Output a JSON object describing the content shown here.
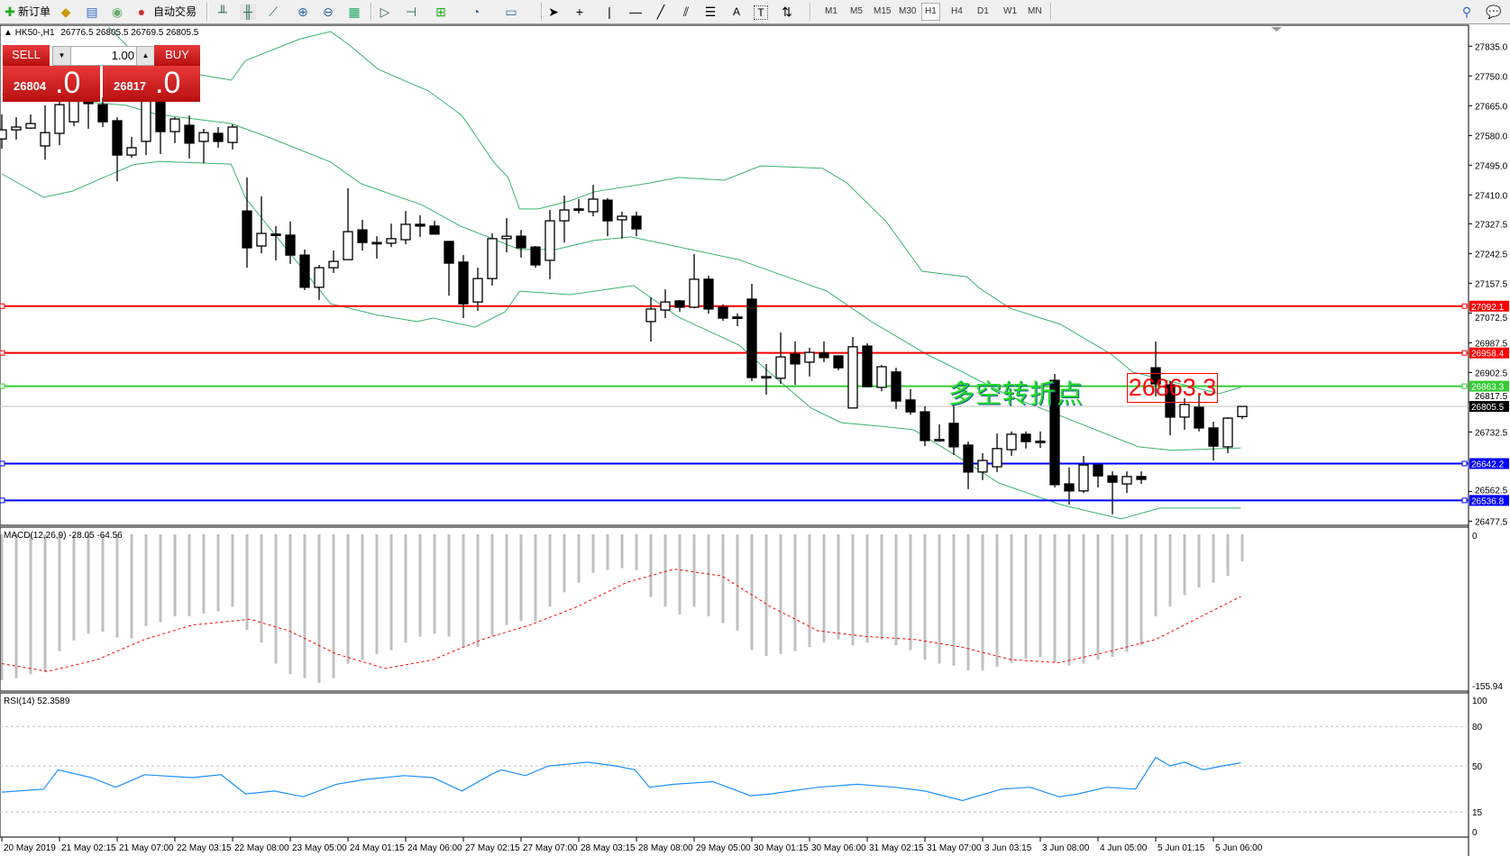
{
  "toolbar": {
    "new_order": "新订单",
    "auto_trading": "自动交易",
    "timeframes": [
      "M1",
      "M5",
      "M15",
      "M30",
      "H1",
      "H4",
      "D1",
      "W1",
      "MN"
    ],
    "active_timeframe": "H1",
    "text_tool": "A",
    "text_label_tool": "T"
  },
  "header": {
    "symbol": "HK50-,H1",
    "ohlc": "26776.5 26805.5 26769.5 26805.5"
  },
  "trade_panel": {
    "sell_label": "SELL",
    "buy_label": "BUY",
    "lot": "1.00",
    "sell_price_main": "26804",
    "sell_price_digit": ".0",
    "buy_price_main": "26817",
    "buy_price_digit": ".0"
  },
  "annotation": {
    "text": "多空转折点",
    "price_label": "26863.3",
    "text_color": "#22dd22"
  },
  "chart": {
    "type": "candlestick",
    "price_ticks": [
      "27835.0",
      "27750.0",
      "27665.0",
      "27580.0",
      "27495.0",
      "27410.0",
      "27327.5",
      "27242.5",
      "27157.5",
      "27072.5",
      "26987.5",
      "26902.5",
      "26817.5",
      "26732.5",
      "26562.5",
      "26477.5"
    ],
    "levels": [
      {
        "price": 27092.1,
        "label": "27092.1",
        "color": "#ff0000"
      },
      {
        "price": 26958.4,
        "label": "26958.4",
        "color": "#ff0000"
      },
      {
        "price": 26863.3,
        "label": "26863.3",
        "color": "#33cc33"
      },
      {
        "price": 26642.2,
        "label": "26642.2",
        "color": "#0000ff"
      },
      {
        "price": 26536.8,
        "label": "26536.8",
        "color": "#0000ff"
      }
    ],
    "bid_line": {
      "price": 26805.5,
      "label": "26805.5",
      "color": "#000000"
    },
    "band_color": "#3cb371",
    "candles_ohlc": [
      [
        27570,
        27640,
        27542,
        27596
      ],
      [
        27596,
        27632,
        27568,
        27604
      ],
      [
        27601,
        27640,
        27599,
        27614
      ],
      [
        27550,
        27666,
        27511,
        27588
      ],
      [
        27586,
        27697,
        27552,
        27668
      ],
      [
        27619,
        27710,
        27607,
        27679
      ],
      [
        27679,
        27710,
        27599,
        27671
      ],
      [
        27668,
        27689,
        27604,
        27619
      ],
      [
        27622,
        27632,
        27449,
        27524
      ],
      [
        27524,
        27576,
        27516,
        27545
      ],
      [
        27563,
        27710,
        27524,
        27697
      ],
      [
        27697,
        27710,
        27527,
        27591
      ],
      [
        27591,
        27632,
        27558,
        27627
      ],
      [
        27609,
        27637,
        27514,
        27558
      ],
      [
        27563,
        27599,
        27501,
        27588
      ],
      [
        27586,
        27604,
        27545,
        27563
      ],
      [
        27560,
        27612,
        27540,
        27604
      ],
      [
        27364,
        27460,
        27202,
        27259
      ],
      [
        27264,
        27406,
        27243,
        27300
      ],
      [
        27298,
        27321,
        27223,
        27295
      ],
      [
        27295,
        27334,
        27213,
        27238
      ],
      [
        27238,
        27254,
        27138,
        27146
      ],
      [
        27146,
        27210,
        27110,
        27202
      ],
      [
        27202,
        27251,
        27187,
        27220
      ],
      [
        27225,
        27429,
        27225,
        27305
      ],
      [
        27310,
        27339,
        27251,
        27274
      ],
      [
        27274,
        27292,
        27228,
        27271
      ],
      [
        27272,
        27328,
        27261,
        27285
      ],
      [
        27282,
        27364,
        27269,
        27326
      ],
      [
        27326,
        27352,
        27290,
        27321
      ],
      [
        27321,
        27336,
        27298,
        27298
      ],
      [
        27277,
        27277,
        27122,
        27215
      ],
      [
        27218,
        27238,
        27058,
        27099
      ],
      [
        27104,
        27202,
        27079,
        27171
      ],
      [
        27171,
        27300,
        27151,
        27285
      ],
      [
        27285,
        27344,
        27246,
        27292
      ],
      [
        27292,
        27310,
        27231,
        27259
      ],
      [
        27261,
        27264,
        27202,
        27210
      ],
      [
        27223,
        27367,
        27169,
        27336
      ],
      [
        27336,
        27408,
        27274,
        27367
      ],
      [
        27370,
        27398,
        27357,
        27367
      ],
      [
        27362,
        27439,
        27349,
        27398
      ],
      [
        27395,
        27401,
        27292,
        27336
      ],
      [
        27339,
        27362,
        27285,
        27349
      ],
      [
        27349,
        27362,
        27292,
        27313
      ],
      [
        27048,
        27117,
        26991,
        27084
      ],
      [
        27081,
        27140,
        27058,
        27104
      ],
      [
        27107,
        27110,
        27076,
        27089
      ],
      [
        27089,
        27241,
        27086,
        27169
      ],
      [
        27169,
        27179,
        27071,
        27084
      ],
      [
        27089,
        27097,
        27050,
        27058
      ],
      [
        27061,
        27071,
        27035,
        27060
      ],
      [
        27112,
        27156,
        26878,
        26888
      ],
      [
        26888,
        26927,
        26839,
        26891
      ],
      [
        26886,
        27017,
        26870,
        26947
      ],
      [
        26955,
        26991,
        26867,
        26927
      ],
      [
        26932,
        26973,
        26891,
        26960
      ],
      [
        26958,
        26991,
        26932,
        26945
      ],
      [
        26950,
        26950,
        26909,
        26916
      ],
      [
        26801,
        27004,
        26801,
        26976
      ],
      [
        26978,
        26986,
        26862,
        26862
      ],
      [
        26860,
        26924,
        26849,
        26919
      ],
      [
        26904,
        26916,
        26798,
        26821
      ],
      [
        26824,
        26855,
        26782,
        26790
      ],
      [
        26790,
        26806,
        26692,
        26708
      ],
      [
        26710,
        26754,
        26705,
        26711
      ],
      [
        26757,
        26816,
        26667,
        26690
      ],
      [
        26695,
        26705,
        26569,
        26618
      ],
      [
        26618,
        26672,
        26595,
        26651
      ],
      [
        26633,
        26728,
        26618,
        26685
      ],
      [
        26682,
        26734,
        26664,
        26726
      ],
      [
        26726,
        26734,
        26685,
        26705
      ],
      [
        26705,
        26734,
        26687,
        26706
      ],
      [
        26880,
        26898,
        26574,
        26582
      ],
      [
        26584,
        26631,
        26525,
        26564
      ],
      [
        26564,
        26664,
        26558,
        26638
      ],
      [
        26638,
        26641,
        26574,
        26607
      ],
      [
        26607,
        26620,
        26497,
        26589
      ],
      [
        26584,
        26620,
        26558,
        26605
      ],
      [
        26605,
        26620,
        26584,
        26597
      ],
      [
        26916,
        26991,
        26834,
        26870
      ],
      [
        26867,
        26878,
        26723,
        26775
      ],
      [
        26775,
        26829,
        26739,
        26811
      ],
      [
        26803,
        26842,
        26734,
        26744
      ],
      [
        26744,
        26762,
        26651,
        26692
      ],
      [
        26690,
        26775,
        26672,
        26772
      ],
      [
        26776.5,
        26805.5,
        26769.5,
        26805.5
      ]
    ],
    "bands": {
      "upper": [
        [
          7.4,
          27890
        ],
        [
          9.25,
          27812
        ],
        [
          13.8,
          27753
        ],
        [
          15.9,
          27738
        ],
        [
          16.9,
          27794
        ],
        [
          20.7,
          27856
        ],
        [
          22.8,
          27877
        ],
        [
          24.1,
          27838
        ],
        [
          26.1,
          27769
        ],
        [
          29.6,
          27707
        ],
        [
          31.9,
          27637
        ],
        [
          34.1,
          27504
        ],
        [
          35.1,
          27460
        ],
        [
          35.9,
          27370
        ],
        [
          37.2,
          27370
        ],
        [
          39.4,
          27393
        ],
        [
          41.1,
          27419
        ],
        [
          44.9,
          27444
        ],
        [
          46.9,
          27460
        ],
        [
          50.1,
          27452
        ],
        [
          52.6,
          27493
        ],
        [
          56.9,
          27486
        ],
        [
          58.6,
          27444
        ],
        [
          61.3,
          27334
        ],
        [
          62.4,
          27272
        ],
        [
          63.8,
          27192
        ],
        [
          66.9,
          27176
        ],
        [
          67.8,
          27143
        ],
        [
          69.9,
          27086
        ],
        [
          73.4,
          27040
        ],
        [
          76.9,
          26955
        ],
        [
          78.4,
          26904
        ],
        [
          84.4,
          26842
        ],
        [
          85.9,
          26860
        ]
      ],
      "middle": [
        [
          0,
          27697
        ],
        [
          8.6,
          27666
        ],
        [
          10.8,
          27640
        ],
        [
          15.9,
          27614
        ],
        [
          18.6,
          27573
        ],
        [
          22.8,
          27504
        ],
        [
          24.9,
          27442
        ],
        [
          29.1,
          27382
        ],
        [
          31.8,
          27321
        ],
        [
          35.9,
          27254
        ],
        [
          38.4,
          27254
        ],
        [
          41.1,
          27280
        ],
        [
          43.6,
          27290
        ],
        [
          45.7,
          27272
        ],
        [
          51.1,
          27225
        ],
        [
          51.9,
          27213
        ],
        [
          57.2,
          27135
        ],
        [
          60.3,
          27048
        ],
        [
          64.1,
          26955
        ],
        [
          66.6,
          26904
        ],
        [
          69.9,
          26834
        ],
        [
          73.2,
          26782
        ],
        [
          78.8,
          26690
        ],
        [
          81.1,
          26680
        ],
        [
          85.9,
          26687
        ]
      ],
      "lower": [
        [
          0,
          27470
        ],
        [
          2.9,
          27403
        ],
        [
          4.9,
          27421
        ],
        [
          6.9,
          27457
        ],
        [
          9.1,
          27496
        ],
        [
          10.9,
          27506
        ],
        [
          15.9,
          27498
        ],
        [
          16.9,
          27401
        ],
        [
          22.8,
          27099
        ],
        [
          26.1,
          27066
        ],
        [
          28.8,
          27048
        ],
        [
          29.9,
          27058
        ],
        [
          32.8,
          27032
        ],
        [
          34.9,
          27076
        ],
        [
          35.9,
          27135
        ],
        [
          39.4,
          27125
        ],
        [
          43.8,
          27151
        ],
        [
          46.9,
          27061
        ],
        [
          51.1,
          26981
        ],
        [
          53,
          26911
        ],
        [
          56.1,
          26801
        ],
        [
          58.2,
          26759
        ],
        [
          60.9,
          26749
        ],
        [
          63.2,
          26739
        ],
        [
          66.6,
          26654
        ],
        [
          69.1,
          26587
        ],
        [
          73.4,
          26525
        ],
        [
          77.6,
          26484
        ],
        [
          80.3,
          26515
        ],
        [
          85.9,
          26515
        ]
      ]
    },
    "time_labels": [
      "20 May 2019",
      "21 May 02:15",
      "21 May 07:00",
      "22 May 03:15",
      "22 May 08:00",
      "23 May 05:00",
      "24 May 01:15",
      "24 May 06:00",
      "27 May 02:15",
      "27 May 07:00",
      "28 May 03:15",
      "28 May 08:00",
      "29 May 05:00",
      "30 May 01:15",
      "30 May 06:00",
      "31 May 02:15",
      "31 May 07:00",
      "3 Jun 03:15",
      "3 Jun 08:00",
      "4 Jun 05:00",
      "5 Jun 01:15",
      "5 Jun 06:00"
    ]
  },
  "macd": {
    "label": "MACD(12,26,9) -28.05 -64.56",
    "scale_top": "0",
    "scale_bottom": "-155.94",
    "range": [
      -155.94,
      0
    ],
    "histogram": [
      -151,
      -149,
      -145,
      -143,
      -121,
      -110,
      -103,
      -101,
      -107,
      -108,
      -95,
      -91,
      -85,
      -85,
      -82,
      -80,
      -75,
      -99,
      -112,
      -134,
      -145,
      -149,
      -154,
      -149,
      -134,
      -130,
      -124,
      -120,
      -112,
      -106,
      -103,
      -106,
      -117,
      -117,
      -105,
      -94,
      -90,
      -90,
      -75,
      -60,
      -50,
      -40,
      -37,
      -35,
      -37,
      -65,
      -75,
      -83,
      -75,
      -85,
      -92,
      -100,
      -120,
      -126,
      -124,
      -121,
      -117,
      -112,
      -109,
      -115,
      -112,
      -109,
      -115,
      -120,
      -130,
      -134,
      -136,
      -141,
      -141,
      -137,
      -133,
      -129,
      -127,
      -133,
      -136,
      -134,
      -130,
      -127,
      -122,
      -115,
      -85,
      -75,
      -63,
      -55,
      -50,
      -43,
      -28.05
    ],
    "signal": [
      [
        0,
        -134
      ],
      [
        3.2,
        -142
      ],
      [
        6.6,
        -130
      ],
      [
        9.9,
        -109
      ],
      [
        13.2,
        -94
      ],
      [
        17.2,
        -88
      ],
      [
        19.9,
        -100
      ],
      [
        23.2,
        -124
      ],
      [
        26.6,
        -139
      ],
      [
        29.9,
        -130
      ],
      [
        33.3,
        -109
      ],
      [
        36.6,
        -94
      ],
      [
        39.9,
        -75
      ],
      [
        43.3,
        -50
      ],
      [
        46.6,
        -36
      ],
      [
        49.9,
        -43
      ],
      [
        53.3,
        -75
      ],
      [
        56.6,
        -100
      ],
      [
        60,
        -106
      ],
      [
        63.3,
        -109
      ],
      [
        66.6,
        -117
      ],
      [
        70,
        -130
      ],
      [
        73.3,
        -133
      ],
      [
        76.6,
        -122
      ],
      [
        80,
        -109
      ],
      [
        83.3,
        -84
      ],
      [
        85.9,
        -64.56
      ]
    ],
    "hist_color": "#c0c0c0",
    "signal_color": "#ff0000"
  },
  "rsi": {
    "label": "RSI(14) 52.3589",
    "levels": [
      "100",
      "80",
      "50",
      "15",
      "0"
    ],
    "line_color": "#1e90ff",
    "values": [
      [
        0,
        30.1
      ],
      [
        2.9,
        32.3
      ],
      [
        3.9,
        47
      ],
      [
        6.2,
        41.1
      ],
      [
        7.9,
        33.8
      ],
      [
        9.9,
        43.3
      ],
      [
        13.2,
        41.1
      ],
      [
        15.2,
        43.3
      ],
      [
        16.9,
        28.7
      ],
      [
        18.9,
        30.9
      ],
      [
        20.9,
        26.5
      ],
      [
        23.2,
        36
      ],
      [
        25.2,
        39.7
      ],
      [
        27.9,
        42.6
      ],
      [
        29.9,
        41.1
      ],
      [
        31.9,
        30.9
      ],
      [
        33.9,
        43.3
      ],
      [
        34.6,
        47
      ],
      [
        36.3,
        42.6
      ],
      [
        37.9,
        49.9
      ],
      [
        40.6,
        52.8
      ],
      [
        42.6,
        49.9
      ],
      [
        43.9,
        47
      ],
      [
        44.9,
        33.8
      ],
      [
        46.6,
        36
      ],
      [
        49.3,
        38
      ],
      [
        51.9,
        27.3
      ],
      [
        53.3,
        28.7
      ],
      [
        56.6,
        33.8
      ],
      [
        59.3,
        36
      ],
      [
        61.9,
        33.8
      ],
      [
        64,
        30.9
      ],
      [
        66.6,
        23.6
      ],
      [
        69.3,
        32.3
      ],
      [
        71.3,
        33.8
      ],
      [
        73.3,
        26.5
      ],
      [
        74.6,
        28.7
      ],
      [
        76.6,
        33.8
      ],
      [
        78.6,
        32.3
      ],
      [
        80,
        56.5
      ],
      [
        81,
        49.9
      ],
      [
        82,
        52.8
      ],
      [
        83.3,
        47
      ],
      [
        84.6,
        49.9
      ],
      [
        85.9,
        52.36
      ]
    ]
  }
}
